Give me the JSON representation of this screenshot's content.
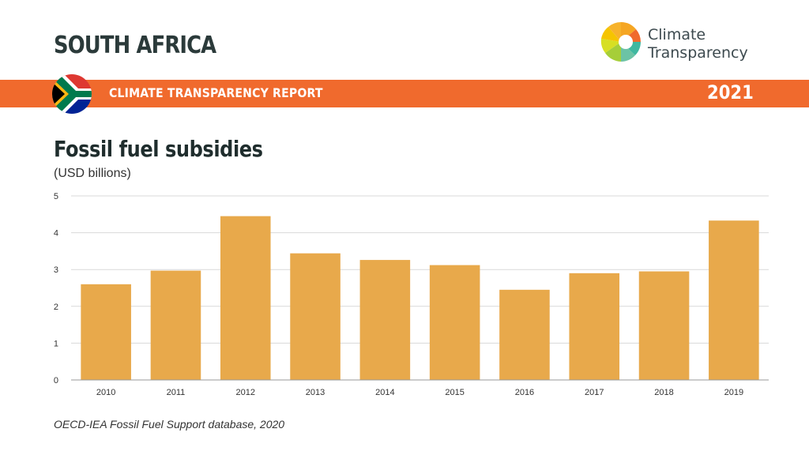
{
  "header": {
    "country": "SOUTH AFRICA",
    "logo_line1": "Climate",
    "logo_line2": "Transparency",
    "report_label": "CLIMATE TRANSPARENCY REPORT",
    "year": "2021"
  },
  "icons": {
    "flag": "south-africa-flag-icon",
    "logo": "climate-transparency-logo-icon"
  },
  "colors": {
    "banner": "#f06a2d",
    "bar": "#e8a94b",
    "gridline": "#d9d9d9",
    "axis": "#999999"
  },
  "chart_data": {
    "type": "bar",
    "title": "Fossil fuel subsidies",
    "subtitle": "(USD billions)",
    "categories": [
      "2010",
      "2011",
      "2012",
      "2013",
      "2014",
      "2015",
      "2016",
      "2017",
      "2018",
      "2019"
    ],
    "values": [
      2.6,
      2.97,
      4.45,
      3.44,
      3.26,
      3.12,
      2.45,
      2.9,
      2.95,
      4.33
    ],
    "ylim": [
      0,
      5
    ],
    "yticks": [
      0,
      1,
      2,
      3,
      4,
      5
    ],
    "xlabel": "",
    "ylabel": "",
    "grid": true,
    "legend": "none"
  },
  "footer": {
    "source": "OECD-IEA Fossil Fuel Support database, 2020"
  }
}
